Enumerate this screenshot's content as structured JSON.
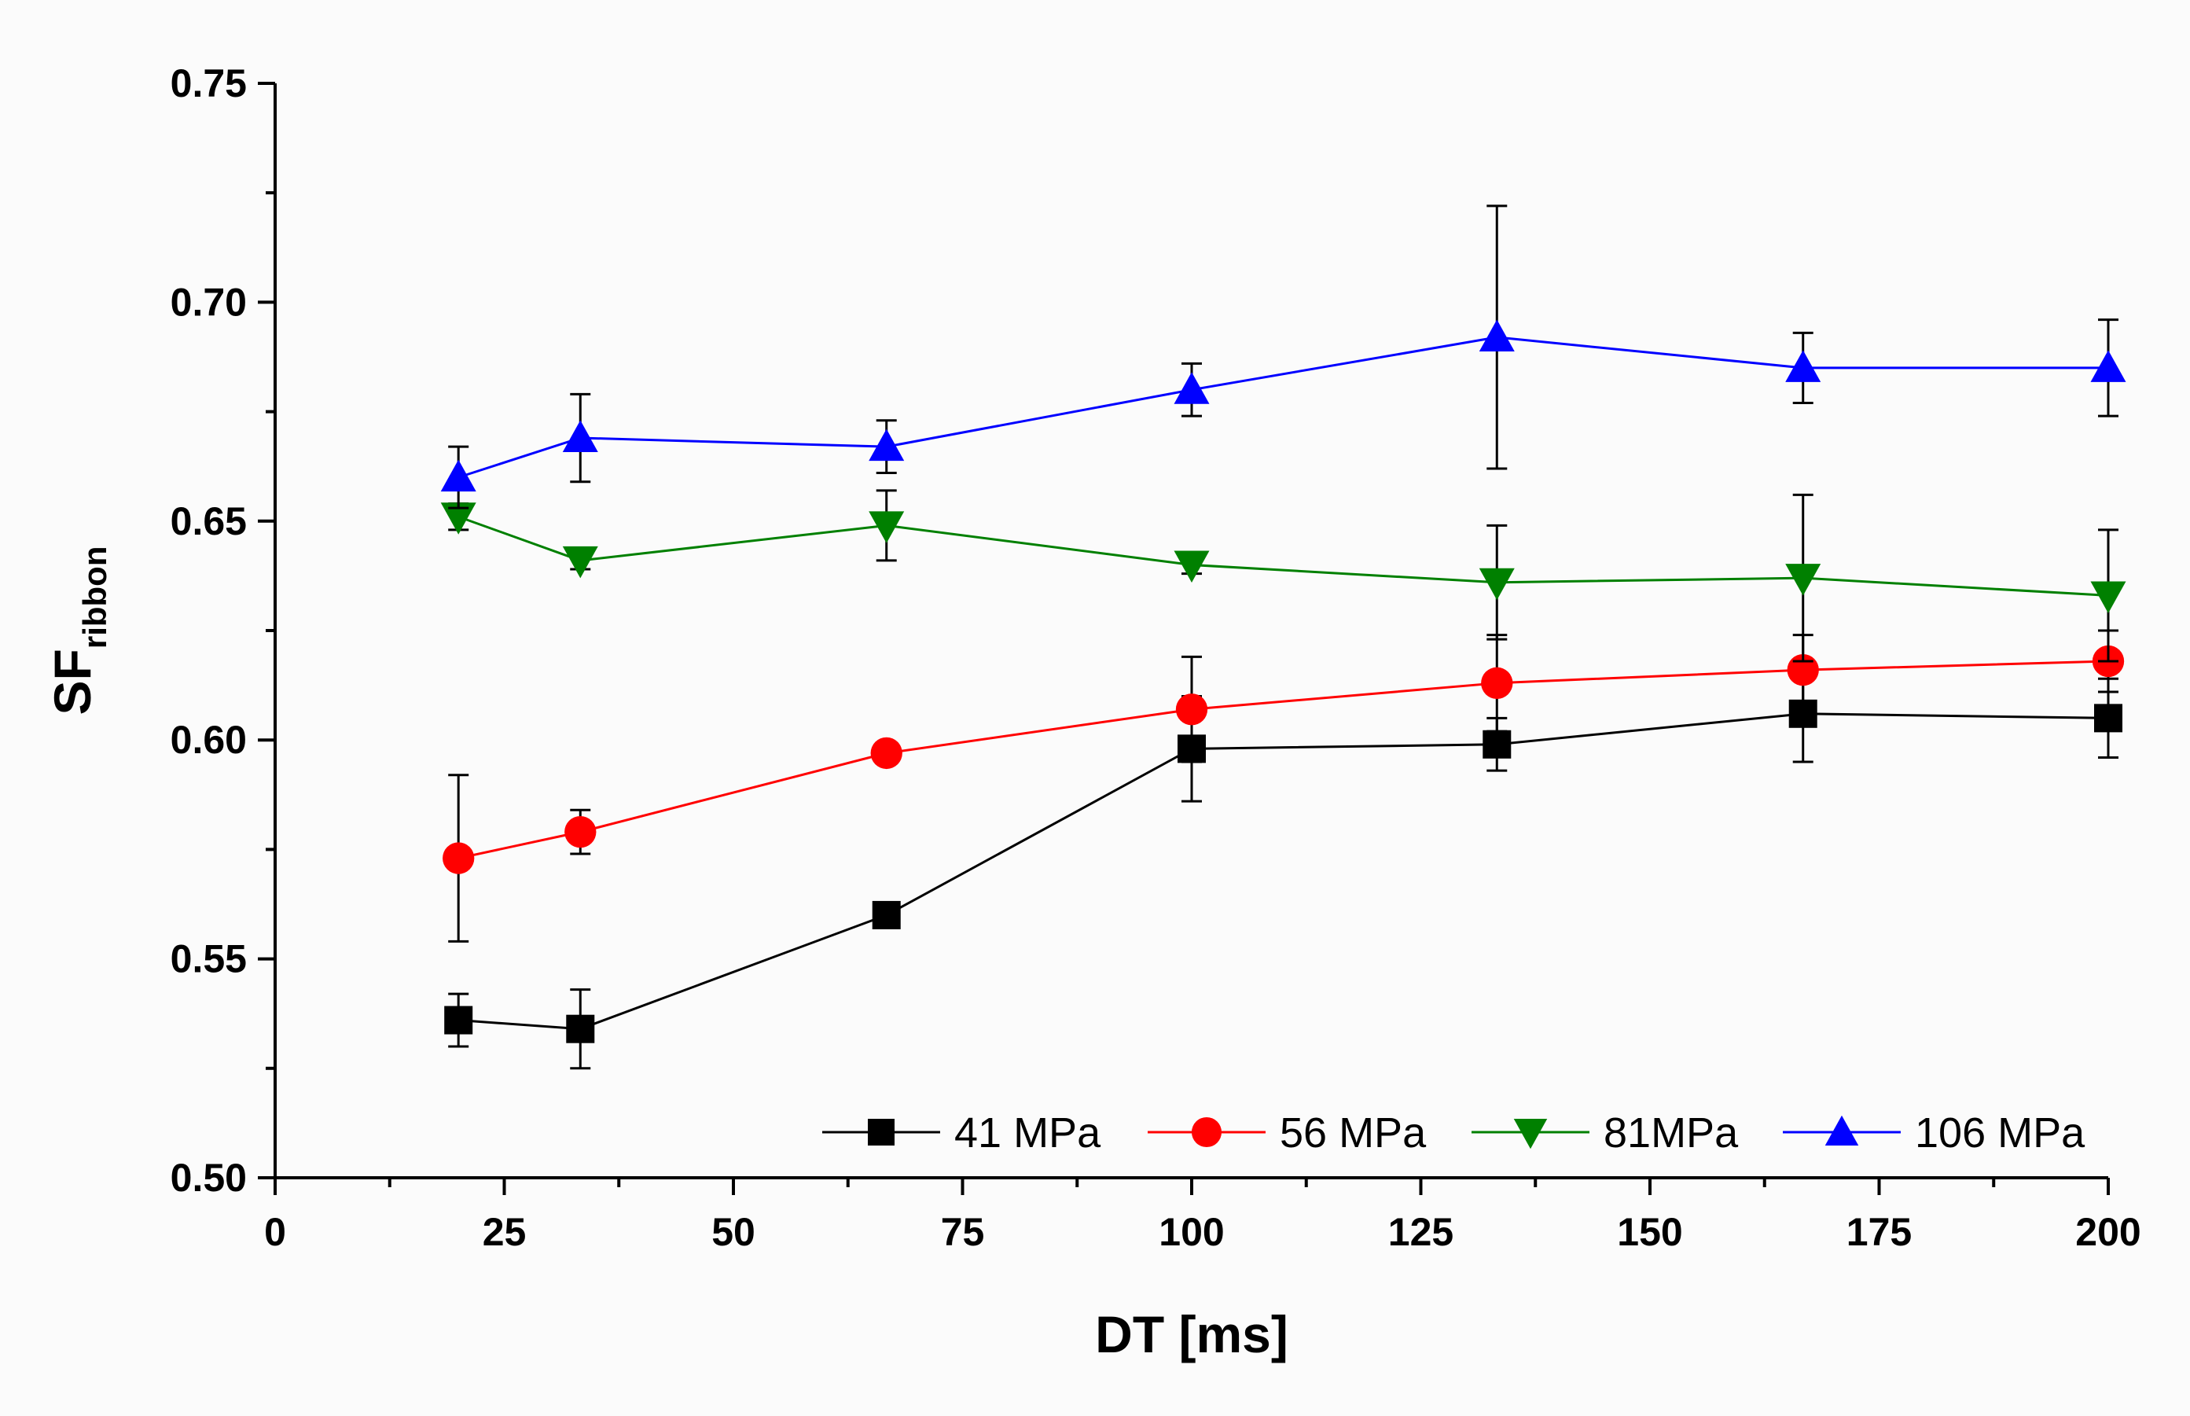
{
  "chart_data": {
    "type": "line",
    "title": "",
    "xlabel": "DT [ms]",
    "ylabel": {
      "main": "SF",
      "sub": "ribbon"
    },
    "xlim": [
      0,
      200
    ],
    "ylim": [
      0.5,
      0.75
    ],
    "x_ticks": [
      "0",
      "25",
      "50",
      "75",
      "100",
      "125",
      "150",
      "175",
      "200"
    ],
    "y_ticks": [
      "0.50",
      "0.55",
      "0.60",
      "0.65",
      "0.70",
      "0.75"
    ],
    "grid": false,
    "legend_position": "bottom-right",
    "x": [
      20,
      33.3,
      66.7,
      100,
      133.3,
      166.7,
      200
    ],
    "series": [
      {
        "name": "41 MPa",
        "color": "#000000",
        "marker": "square",
        "values": [
          0.536,
          0.534,
          0.56,
          0.598,
          0.599,
          0.606,
          0.605
        ],
        "errors": [
          0.006,
          0.009,
          0.002,
          0.012,
          0.006,
          0.011,
          0.009
        ]
      },
      {
        "name": "56 MPa",
        "color": "#ff0000",
        "marker": "circle",
        "values": [
          0.573,
          0.579,
          0.597,
          0.607,
          0.613,
          0.616,
          0.618
        ],
        "errors": [
          0.019,
          0.005,
          0.002,
          0.012,
          0.011,
          0.008,
          0.007
        ]
      },
      {
        "name": "81MPa",
        "color": "#008000",
        "marker": "triangle-down",
        "values": [
          0.651,
          0.641,
          0.649,
          0.64,
          0.636,
          0.637,
          0.633
        ],
        "errors": [
          0.003,
          0.002,
          0.008,
          0.002,
          0.013,
          0.019,
          0.015
        ]
      },
      {
        "name": "106 MPa",
        "color": "#0000ff",
        "marker": "triangle-up",
        "values": [
          0.66,
          0.669,
          0.667,
          0.68,
          0.692,
          0.685,
          0.685
        ],
        "errors": [
          0.007,
          0.01,
          0.006,
          0.006,
          0.03,
          0.008,
          0.011
        ]
      }
    ]
  }
}
